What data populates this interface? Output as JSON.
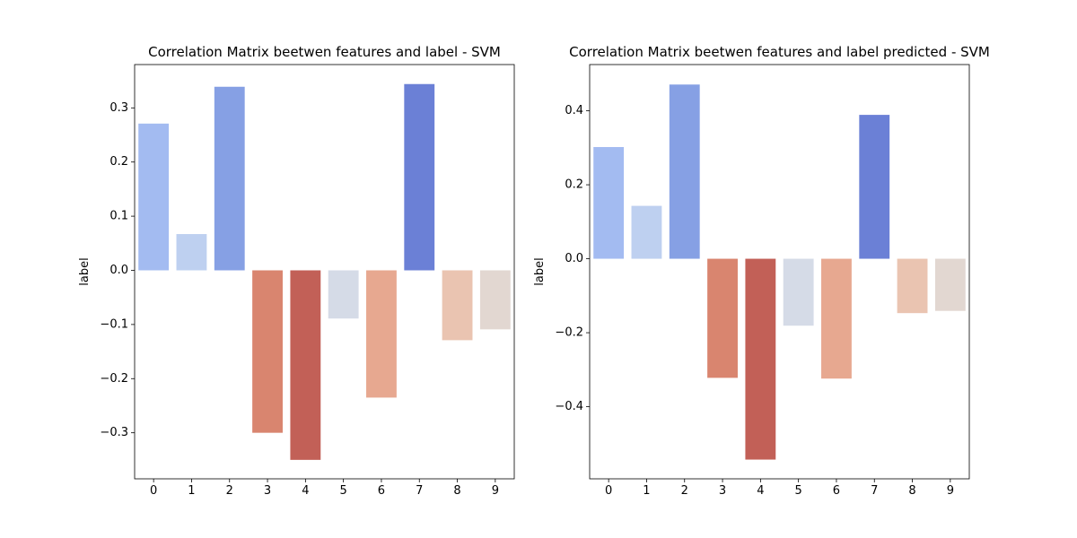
{
  "chart_data": [
    {
      "type": "bar",
      "title": "Correlation Matrix beetwen features and label - SVM",
      "xlabel": "",
      "ylabel": "label",
      "categories": [
        "0",
        "1",
        "2",
        "3",
        "4",
        "5",
        "6",
        "7",
        "8",
        "9"
      ],
      "values": [
        0.271,
        0.067,
        0.339,
        -0.3,
        -0.35,
        -0.089,
        -0.235,
        0.344,
        -0.129,
        -0.109
      ],
      "colors": [
        "#a3bbf1",
        "#bed0f0",
        "#86a0e4",
        "#d9856f",
        "#c26057",
        "#d5dbe7",
        "#e7a890",
        "#6b80d6",
        "#eac4b1",
        "#e2d7d1"
      ],
      "ylim": [
        -0.385,
        0.38
      ],
      "yticks": [
        -0.3,
        -0.2,
        -0.1,
        0.0,
        0.1,
        0.2,
        0.3
      ],
      "ytick_labels": [
        "−0.3",
        "−0.2",
        "−0.1",
        "0.0",
        "0.1",
        "0.2",
        "0.3"
      ],
      "grid": false,
      "legend": "none"
    },
    {
      "type": "bar",
      "title": "Correlation Matrix beetwen features and label predicted - SVM",
      "xlabel": "",
      "ylabel": "label",
      "categories": [
        "0",
        "1",
        "2",
        "3",
        "4",
        "5",
        "6",
        "7",
        "8",
        "9"
      ],
      "values": [
        0.302,
        0.143,
        0.471,
        -0.322,
        -0.543,
        -0.181,
        -0.324,
        0.389,
        -0.147,
        -0.141
      ],
      "colors": [
        "#a3bbf1",
        "#bed0f0",
        "#86a0e4",
        "#d9856f",
        "#c26057",
        "#d5dbe7",
        "#e7a890",
        "#6b80d6",
        "#eac4b1",
        "#e2d7d1"
      ],
      "ylim": [
        -0.595,
        0.525
      ],
      "yticks": [
        -0.4,
        -0.2,
        0.0,
        0.2,
        0.4
      ],
      "ytick_labels": [
        "−0.4",
        "−0.2",
        "0.0",
        "0.2",
        "0.4"
      ],
      "grid": false,
      "legend": "none"
    }
  ]
}
